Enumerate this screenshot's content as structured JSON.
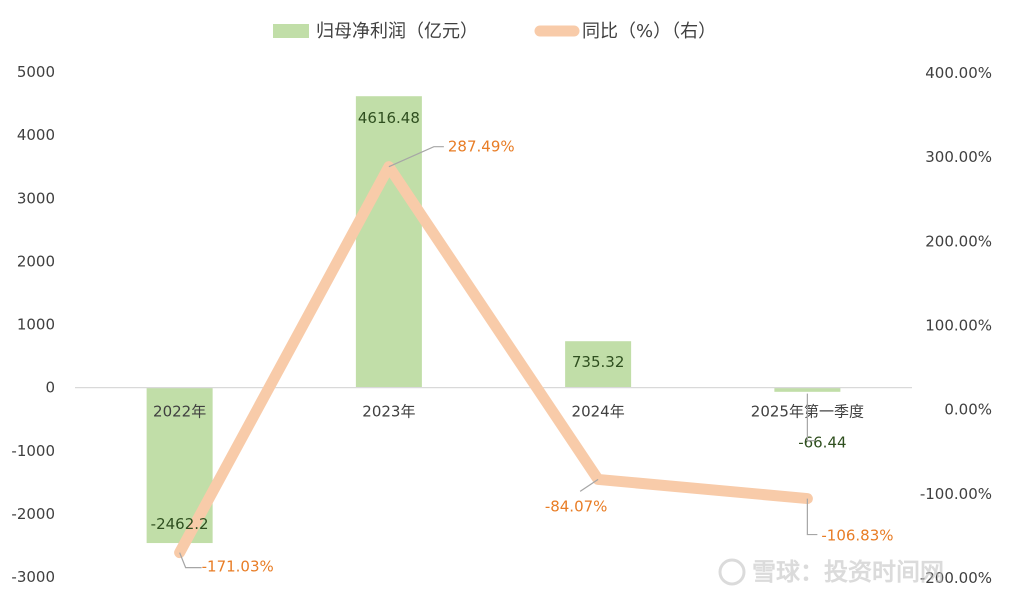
{
  "chart_data": {
    "type": "bar",
    "categories": [
      "2022年",
      "2023年",
      "2024年",
      "2025年第一季度"
    ],
    "series": [
      {
        "name": "归母净利润（亿元）",
        "type": "bar",
        "axis": "left",
        "values": [
          -2462.2,
          4616.48,
          735.32,
          -66.44
        ],
        "labels": [
          "-2462.2",
          "4616.48",
          "735.32",
          "-66.44"
        ],
        "color": "#c1dea8",
        "label_color": "#2f4f1f"
      },
      {
        "name": "同比（%）（右）",
        "type": "line",
        "axis": "right",
        "values": [
          -171.03,
          287.49,
          -84.07,
          -106.83
        ],
        "labels": [
          "-171.03%",
          "287.49%",
          "-84.07%",
          "-106.83%"
        ],
        "color": "#f8cba9",
        "label_color": "#e87d26"
      }
    ],
    "y_left": {
      "range": [
        -3000,
        5000
      ],
      "ticks": [
        5000,
        4000,
        3000,
        2000,
        1000,
        0,
        -1000,
        -2000,
        -3000
      ],
      "tick_labels": [
        "5000",
        "4000",
        "3000",
        "2000",
        "1000",
        "0",
        "-1000",
        "-2000",
        "-3000"
      ]
    },
    "y_right": {
      "range": [
        -200,
        400
      ],
      "ticks": [
        400,
        300,
        200,
        100,
        0,
        -100,
        -200
      ],
      "tick_labels": [
        "400.00%",
        "300.00%",
        "200.00%",
        "100.00%",
        "0.00%",
        "-100.00%",
        "-200.00%"
      ]
    },
    "grid": false,
    "legend_position": "top-center"
  },
  "watermark": {
    "text": "雪球：投资时间网"
  },
  "colors": {
    "axis": "#d9d9d9",
    "tick_text": "#404040",
    "leader": "#a6a6a6"
  }
}
